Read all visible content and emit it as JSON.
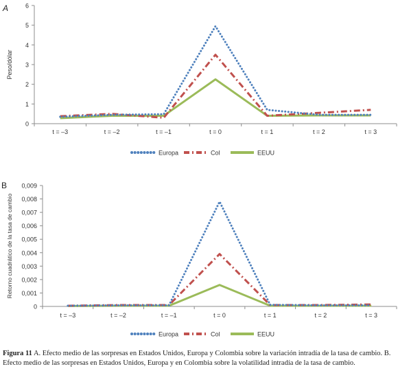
{
  "chart_data": [
    {
      "type": "line",
      "panel_label": "A",
      "categories": [
        "t = –3",
        "t = –2",
        "t = –1",
        "t = 0",
        "t = 1",
        "t = 2",
        "t = 3"
      ],
      "ylabel": "Peso/dólar",
      "ylim": [
        0,
        6
      ],
      "yticks": [
        "0",
        "1",
        "2",
        "3",
        "4",
        "5",
        "6"
      ],
      "grid": false,
      "legend_position": "bottom",
      "series": [
        {
          "name": "Europa",
          "values": [
            0.35,
            0.45,
            0.48,
            4.95,
            0.7,
            0.45,
            0.45
          ],
          "color": "#4f81bd",
          "style": "dotted"
        },
        {
          "name": "Col",
          "values": [
            0.38,
            0.5,
            0.3,
            3.5,
            0.4,
            0.55,
            0.7
          ],
          "color": "#c0504d",
          "style": "dashdot"
        },
        {
          "name": "EEUU",
          "values": [
            0.28,
            0.4,
            0.4,
            2.25,
            0.4,
            0.42,
            0.42
          ],
          "color": "#9bbb59",
          "style": "solid"
        }
      ]
    },
    {
      "type": "line",
      "panel_label": "B",
      "categories": [
        "t = –3",
        "t = –2",
        "t = –1",
        "t = 0",
        "t = 1",
        "t = 2",
        "t = 3"
      ],
      "ylabel": "Retorno cuadrático de la tasa de cambio",
      "ylim": [
        0,
        0.009
      ],
      "yticks": [
        "0",
        "0,001",
        "0,002",
        "0,003",
        "0,004",
        "0,005",
        "0,006",
        "0,007",
        "0,008",
        "0,009"
      ],
      "grid": false,
      "legend_position": "bottom",
      "series": [
        {
          "name": "Europa",
          "values": [
            5e-05,
            8e-05,
            8e-05,
            0.0078,
            0.00012,
            8e-05,
            8e-05
          ],
          "color": "#4f81bd",
          "style": "dotted"
        },
        {
          "name": "Col",
          "values": [
            5e-05,
            0.0001,
            0.0001,
            0.0039,
            0.0001,
            0.0001,
            0.00015
          ],
          "color": "#c0504d",
          "style": "dashdot"
        },
        {
          "name": "EEUU",
          "values": [
            3e-05,
            5e-05,
            5e-05,
            0.0016,
            5e-05,
            5e-05,
            5e-05
          ],
          "color": "#9bbb59",
          "style": "solid"
        }
      ]
    }
  ],
  "caption": {
    "label": "Figura 11",
    "text": "A. Efecto medio de las sorpresas en Estados Unidos, Europa y Colombia sobre la variación intradía de la tasa de cambio. B. Efecto medio de las sorpresas en Estados  Unidos, Europa y en Colombia sobre la volatilidad intradía de la tasa de cambio."
  }
}
